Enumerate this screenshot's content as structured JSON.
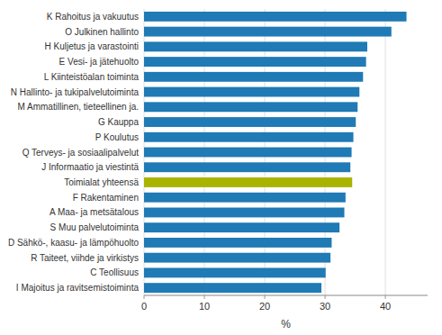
{
  "chart_data": {
    "type": "bar",
    "orientation": "horizontal",
    "categories": [
      "K Rahoitus ja vakuutus",
      "O Julkinen hallinto",
      "H Kuljetus ja varastointi",
      "E Vesi- ja jätehuolto",
      "L Kiinteistöalan toiminta",
      "N Hallinto- ja tukipalvelutoiminta",
      "M Ammatillinen, tieteellinen ja.",
      "G Kauppa",
      "P Koulutus",
      "Q Terveys- ja sosiaalipalvelut",
      "J Informaatio ja viestintä",
      "Toimialat yhteensä",
      "F Rakentaminen",
      "A Maa- ja metsätalous",
      "S Muu palvelutoiminta",
      "D Sähkö-, kaasu- ja lämpöhuolto",
      "R Taiteet, viihde ja virkistys",
      "C Teollisuus",
      "I Majoitus ja ravitsemistoiminta"
    ],
    "values": [
      43.5,
      41.0,
      37.0,
      36.8,
      36.3,
      35.7,
      35.4,
      35.1,
      34.7,
      34.4,
      34.2,
      34.5,
      33.4,
      33.2,
      32.4,
      31.1,
      30.9,
      30.1,
      29.4
    ],
    "colors": [
      "#1f7ab5",
      "#1f7ab5",
      "#1f7ab5",
      "#1f7ab5",
      "#1f7ab5",
      "#1f7ab5",
      "#1f7ab5",
      "#1f7ab5",
      "#1f7ab5",
      "#1f7ab5",
      "#1f7ab5",
      "#a8b400",
      "#1f7ab5",
      "#1f7ab5",
      "#1f7ab5",
      "#1f7ab5",
      "#1f7ab5",
      "#1f7ab5",
      "#1f7ab5"
    ],
    "xlabel": "%",
    "xlim": [
      0,
      47
    ],
    "xticks": [
      0,
      10,
      20,
      30,
      40
    ],
    "grid": true
  }
}
